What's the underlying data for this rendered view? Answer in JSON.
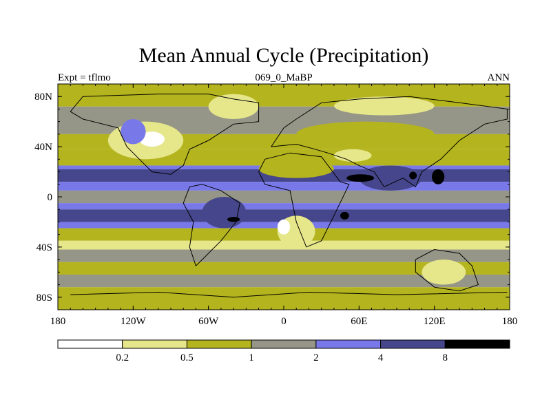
{
  "chart_data": {
    "type": "heatmap",
    "title": "Mean Annual Cycle (Precipitation)",
    "subtitle_left": "Expt = tflmo",
    "subtitle_center": "069_0_MaBP",
    "subtitle_right": "ANN",
    "x_ticks": [
      "180",
      "120W",
      "60W",
      "0",
      "60E",
      "120E",
      "180"
    ],
    "x_tick_values": [
      -180,
      -120,
      -60,
      0,
      60,
      120,
      180
    ],
    "y_ticks": [
      "80N",
      "40N",
      "0",
      "40S",
      "80S"
    ],
    "y_tick_values": [
      80,
      40,
      0,
      -40,
      -80
    ],
    "xlim": [
      -180,
      180
    ],
    "ylim": [
      -90,
      90
    ],
    "colorbar": {
      "levels": [
        "0.2",
        "0.5",
        "1",
        "2",
        "4",
        "8"
      ],
      "level_values": [
        0.2,
        0.5,
        1,
        2,
        4,
        8
      ],
      "colors": [
        "#ffffff",
        "#e6e68a",
        "#b4b41e",
        "#969688",
        "#7878e8",
        "#46468c",
        "#000000"
      ]
    },
    "zonal_bands": [
      {
        "lat_from": 90,
        "lat_to": 72,
        "value": 0.6
      },
      {
        "lat_from": 72,
        "lat_to": 50,
        "value": 1.4
      },
      {
        "lat_from": 50,
        "lat_to": 38,
        "value": 0.8
      },
      {
        "lat_from": 38,
        "lat_to": 25,
        "value": 0.5
      },
      {
        "lat_from": 25,
        "lat_to": 22,
        "value": 2.5
      },
      {
        "lat_from": 22,
        "lat_to": 12,
        "value": 5.0
      },
      {
        "lat_from": 12,
        "lat_to": 5,
        "value": 2.5
      },
      {
        "lat_from": 5,
        "lat_to": -5,
        "value": 1.4
      },
      {
        "lat_from": -5,
        "lat_to": -10,
        "value": 2.5
      },
      {
        "lat_from": -10,
        "lat_to": -20,
        "value": 5.0
      },
      {
        "lat_from": -20,
        "lat_to": -25,
        "value": 2.5
      },
      {
        "lat_from": -25,
        "lat_to": -35,
        "value": 0.8
      },
      {
        "lat_from": -35,
        "lat_to": -42,
        "value": 0.4
      },
      {
        "lat_from": -42,
        "lat_to": -52,
        "value": 1.5
      },
      {
        "lat_from": -52,
        "lat_to": -62,
        "value": 0.8
      },
      {
        "lat_from": -62,
        "lat_to": -72,
        "value": 1.4
      },
      {
        "lat_from": -72,
        "lat_to": -90,
        "value": 0.8
      }
    ],
    "regions": [
      {
        "name": "north-america-dry",
        "lon": [
          -140,
          -80
        ],
        "lat": [
          60,
          30
        ],
        "value": 0.4
      },
      {
        "name": "north-america-core",
        "lon": [
          -115,
          -95
        ],
        "lat": [
          52,
          40
        ],
        "value": 0.15
      },
      {
        "name": "greenland-dry",
        "lon": [
          -60,
          -20
        ],
        "lat": [
          82,
          62
        ],
        "value": 0.35
      },
      {
        "name": "rockies-wet",
        "lon": [
          -130,
          -110
        ],
        "lat": [
          62,
          42
        ],
        "value": 2.5
      },
      {
        "name": "sahara-dry",
        "lon": [
          -20,
          40
        ],
        "lat": [
          30,
          15
        ],
        "value": 0.6
      },
      {
        "name": "eurasia-dry",
        "lon": [
          10,
          120
        ],
        "lat": [
          60,
          40
        ],
        "value": 0.6
      },
      {
        "name": "mideast-dry",
        "lon": [
          40,
          70
        ],
        "lat": [
          38,
          28
        ],
        "value": 0.4
      },
      {
        "name": "siberia-dry",
        "lon": [
          40,
          120
        ],
        "lat": [
          80,
          65
        ],
        "value": 0.35
      },
      {
        "name": "africa-dry",
        "lon": [
          -5,
          25
        ],
        "lat": [
          -15,
          -40
        ],
        "value": 0.4
      },
      {
        "name": "africa-core",
        "lon": [
          -5,
          5
        ],
        "lat": [
          -18,
          -30
        ],
        "value": 0.15
      },
      {
        "name": "australia-dry",
        "lon": [
          110,
          145
        ],
        "lat": [
          -50,
          -70
        ],
        "value": 0.4
      },
      {
        "name": "s-america-wet",
        "lon": [
          -65,
          -30
        ],
        "lat": [
          0,
          -25
        ],
        "value": 5.0
      },
      {
        "name": "india-wet",
        "lon": [
          60,
          110
        ],
        "lat": [
          25,
          5
        ],
        "value": 5.0
      },
      {
        "name": "asia-max-1",
        "lon": [
          50,
          72
        ],
        "lat": [
          18,
          12
        ],
        "value": 10
      },
      {
        "name": "asia-max-2",
        "lon": [
          118,
          128
        ],
        "lat": [
          22,
          10
        ],
        "value": 10
      },
      {
        "name": "asia-max-3",
        "lon": [
          100,
          106
        ],
        "lat": [
          20,
          14
        ],
        "value": 10
      },
      {
        "name": "s-america-max",
        "lon": [
          -45,
          -35
        ],
        "lat": [
          -16,
          -20
        ],
        "value": 10
      },
      {
        "name": "indian-ocean-max",
        "lon": [
          45,
          52
        ],
        "lat": [
          -12,
          -18
        ],
        "value": 10
      }
    ],
    "coastlines": [
      {
        "name": "north-america",
        "points": [
          [
            -160,
            80
          ],
          [
            -100,
            82
          ],
          [
            -60,
            82
          ],
          [
            -40,
            78
          ],
          [
            -20,
            75
          ],
          [
            -20,
            60
          ],
          [
            -40,
            58
          ],
          [
            -60,
            45
          ],
          [
            -75,
            38
          ],
          [
            -80,
            25
          ],
          [
            -90,
            18
          ],
          [
            -105,
            20
          ],
          [
            -115,
            30
          ],
          [
            -125,
            40
          ],
          [
            -132,
            55
          ],
          [
            -160,
            62
          ],
          [
            -170,
            68
          ],
          [
            -160,
            80
          ]
        ]
      },
      {
        "name": "south-america",
        "points": [
          [
            -65,
            10
          ],
          [
            -50,
            5
          ],
          [
            -35,
            -5
          ],
          [
            -38,
            -20
          ],
          [
            -50,
            -35
          ],
          [
            -65,
            -50
          ],
          [
            -70,
            -55
          ],
          [
            -75,
            -40
          ],
          [
            -72,
            -20
          ],
          [
            -80,
            -5
          ],
          [
            -75,
            8
          ],
          [
            -65,
            10
          ]
        ]
      },
      {
        "name": "africa",
        "points": [
          [
            -15,
            30
          ],
          [
            5,
            35
          ],
          [
            30,
            32
          ],
          [
            45,
            12
          ],
          [
            52,
            10
          ],
          [
            40,
            -15
          ],
          [
            30,
            -35
          ],
          [
            18,
            -40
          ],
          [
            10,
            -20
          ],
          [
            5,
            5
          ],
          [
            -15,
            10
          ],
          [
            -20,
            20
          ],
          [
            -15,
            30
          ]
        ]
      },
      {
        "name": "eurasia",
        "points": [
          [
            -10,
            40
          ],
          [
            0,
            55
          ],
          [
            10,
            62
          ],
          [
            30,
            75
          ],
          [
            60,
            78
          ],
          [
            100,
            80
          ],
          [
            140,
            75
          ],
          [
            178,
            70
          ],
          [
            178,
            62
          ],
          [
            160,
            58
          ],
          [
            140,
            45
          ],
          [
            125,
            30
          ],
          [
            110,
            20
          ],
          [
            105,
            8
          ],
          [
            95,
            15
          ],
          [
            80,
            8
          ],
          [
            72,
            20
          ],
          [
            60,
            25
          ],
          [
            50,
            30
          ],
          [
            35,
            35
          ],
          [
            25,
            38
          ],
          [
            10,
            42
          ],
          [
            -10,
            40
          ]
        ]
      },
      {
        "name": "australia",
        "points": [
          [
            105,
            -50
          ],
          [
            120,
            -42
          ],
          [
            140,
            -45
          ],
          [
            150,
            -55
          ],
          [
            155,
            -70
          ],
          [
            140,
            -75
          ],
          [
            120,
            -72
          ],
          [
            105,
            -60
          ],
          [
            105,
            -50
          ]
        ]
      },
      {
        "name": "antarctica-edge",
        "points": [
          [
            -170,
            -78
          ],
          [
            -100,
            -76
          ],
          [
            -40,
            -80
          ],
          [
            20,
            -76
          ],
          [
            90,
            -78
          ],
          [
            178,
            -76
          ]
        ]
      }
    ]
  }
}
